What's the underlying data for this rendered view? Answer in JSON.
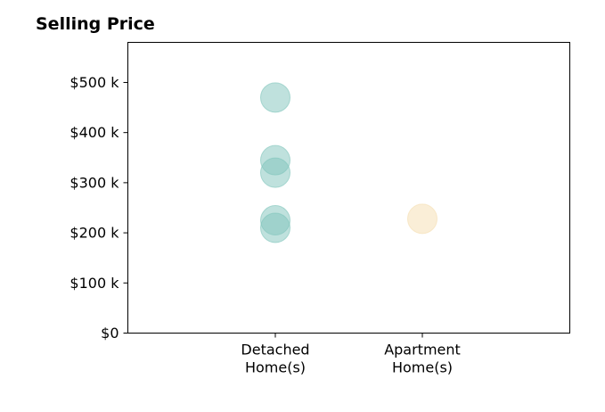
{
  "chart_data": {
    "type": "scatter",
    "title": "Selling Price",
    "xlabel": "",
    "ylabel": "",
    "categories": [
      [
        "Detached",
        "Home(s)"
      ],
      [
        "Apartment",
        "Home(s)"
      ]
    ],
    "ylim": [
      0,
      580000
    ],
    "yticks": [
      {
        "value": 0,
        "label": "$0"
      },
      {
        "value": 100000,
        "label": "$100 k"
      },
      {
        "value": 200000,
        "label": "$200 k"
      },
      {
        "value": 300000,
        "label": "$300 k"
      },
      {
        "value": 400000,
        "label": "$400 k"
      },
      {
        "value": 500000,
        "label": "$500 k"
      }
    ],
    "grid": false,
    "series": [
      {
        "category_index": 0,
        "color": "#7fc4bb",
        "values": [
          470000,
          345000,
          320000,
          225000,
          210000
        ]
      },
      {
        "category_index": 1,
        "color": "#f5deb0",
        "values": [
          228000
        ]
      }
    ]
  }
}
